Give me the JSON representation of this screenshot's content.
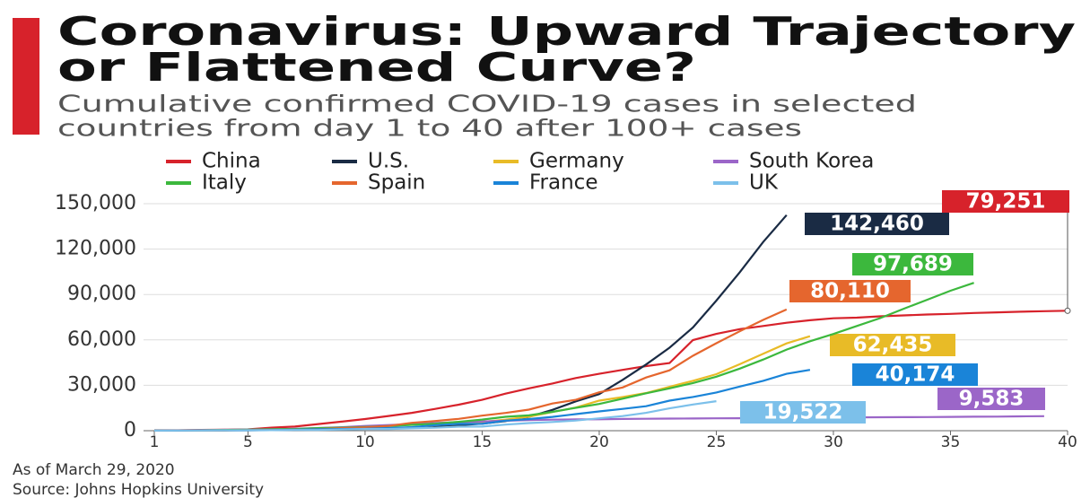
{
  "chart_data": {
    "type": "line",
    "title": [
      "Coronavirus: Upward Trajectory",
      "or Flattened Curve?"
    ],
    "subtitle": [
      "Cumulative confirmed COVID-19 cases in selected",
      "countries from day 1 to 40 after 100+ cases"
    ],
    "notes": [
      "As of March 29, 2020",
      "Source: Johns Hopkins University"
    ],
    "x": [
      1,
      2,
      3,
      4,
      5,
      6,
      7,
      8,
      9,
      10,
      11,
      12,
      13,
      14,
      15,
      16,
      17,
      18,
      19,
      20,
      21,
      22,
      23,
      24,
      25,
      26,
      27,
      28,
      29,
      30,
      31,
      32,
      33,
      34,
      35,
      36,
      37,
      38,
      39,
      40
    ],
    "xlim": [
      1,
      40
    ],
    "xticks": [
      1,
      5,
      10,
      15,
      20,
      25,
      30,
      35,
      40
    ],
    "ylim": [
      0,
      150000
    ],
    "yticks": [
      0,
      {
        "value": 30000,
        "label": "30,000"
      },
      {
        "value": 60000,
        "label": "60,000"
      },
      {
        "value": 90000,
        "label": "90,000"
      },
      {
        "value": 120000,
        "label": "120,000"
      },
      {
        "value": 150000,
        "label": "150,000"
      }
    ],
    "grid": true,
    "series": [
      {
        "name": "China",
        "color": "#d7222b",
        "values": [
          278,
          326,
          547,
          639,
          916,
          2000,
          2700,
          4400,
          6000,
          7700,
          9700,
          11800,
          14400,
          17200,
          20400,
          24500,
          28000,
          31200,
          34800,
          37600,
          40200,
          42700,
          44700,
          59900,
          64000,
          67100,
          69200,
          71300,
          73000,
          74300,
          74700,
          75600,
          76200,
          76800,
          77200,
          77800,
          78200,
          78600,
          79000,
          79251
        ],
        "value_labels": [
          null,
          null,
          null,
          null,
          null,
          null,
          null,
          null,
          null,
          null,
          null,
          null,
          null,
          null,
          null,
          null,
          null,
          null,
          null,
          null,
          null,
          null,
          null,
          null,
          null,
          null,
          null,
          null,
          null,
          null,
          null,
          null,
          null,
          null,
          null,
          null,
          null,
          null,
          null,
          "79,251"
        ]
      },
      {
        "name": "U.S.",
        "color": "#1a2b44",
        "values": [
          100,
          124,
          158,
          221,
          319,
          435,
          541,
          704,
          994,
          1301,
          1630,
          2183,
          2770,
          3613,
          4596,
          6344,
          9197,
          13779,
          19367,
          24192,
          33592,
          43781,
          54856,
          68211,
          85996,
          104686,
          124665,
          142460,
          null,
          null,
          null,
          null,
          null,
          null,
          null,
          null,
          null,
          null,
          null,
          null
        ],
        "value_labels": [
          null,
          null,
          null,
          null,
          null,
          null,
          null,
          null,
          null,
          null,
          null,
          null,
          null,
          null,
          null,
          null,
          null,
          null,
          null,
          null,
          null,
          null,
          null,
          null,
          null,
          null,
          null,
          "142,460",
          null,
          null,
          null,
          null,
          null,
          null,
          null,
          null,
          null,
          null,
          null,
          null
        ]
      },
      {
        "name": "Germany",
        "color": "#e8bb27",
        "values": [
          130,
          159,
          196,
          262,
          482,
          670,
          799,
          1040,
          1176,
          1457,
          1908,
          2078,
          3675,
          4585,
          5795,
          7272,
          9257,
          12327,
          15320,
          19848,
          22213,
          24873,
          29056,
          32986,
          37323,
          43938,
          50871,
          57695,
          62435,
          null,
          null,
          null,
          null,
          null,
          null,
          null,
          null,
          null,
          null,
          null
        ],
        "value_labels": [
          null,
          null,
          null,
          null,
          null,
          null,
          null,
          null,
          null,
          null,
          null,
          null,
          null,
          null,
          null,
          null,
          null,
          null,
          null,
          null,
          null,
          null,
          null,
          null,
          null,
          null,
          null,
          null,
          "62,435",
          null,
          null,
          null,
          null,
          null,
          null,
          null,
          null,
          null,
          null,
          null
        ]
      },
      {
        "name": "South Korea",
        "color": "#9b66c8",
        "values": [
          104,
          204,
          433,
          602,
          833,
          977,
          1261,
          1766,
          2337,
          3150,
          3736,
          4335,
          5186,
          5621,
          6088,
          6593,
          7041,
          7314,
          7478,
          7513,
          7755,
          7869,
          7979,
          8086,
          8162,
          8236,
          8320,
          8413,
          8565,
          8652,
          8799,
          8897,
          8961,
          9037,
          9137,
          9241,
          9332,
          9478,
          9583,
          null
        ],
        "value_labels": [
          null,
          null,
          null,
          null,
          null,
          null,
          null,
          null,
          null,
          null,
          null,
          null,
          null,
          null,
          null,
          null,
          null,
          null,
          null,
          null,
          null,
          null,
          null,
          null,
          null,
          null,
          null,
          null,
          null,
          null,
          null,
          null,
          null,
          null,
          null,
          null,
          null,
          null,
          "9,583",
          null
        ]
      },
      {
        "name": "Italy",
        "color": "#3cb83d",
        "values": [
          155,
          229,
          322,
          453,
          655,
          888,
          1128,
          1694,
          2036,
          2502,
          3089,
          3858,
          4636,
          5883,
          7375,
          9172,
          10149,
          12462,
          15113,
          17660,
          21157,
          24747,
          27980,
          31506,
          35713,
          41035,
          47021,
          53578,
          59138,
          63927,
          69176,
          74386,
          80589,
          86498,
          92472,
          97689,
          null,
          null,
          null,
          null
        ],
        "value_labels": [
          null,
          null,
          null,
          null,
          null,
          null,
          null,
          null,
          null,
          null,
          null,
          null,
          null,
          null,
          null,
          null,
          null,
          null,
          null,
          null,
          null,
          null,
          null,
          null,
          null,
          null,
          null,
          null,
          null,
          null,
          null,
          null,
          null,
          null,
          null,
          "97,689",
          null,
          null,
          null,
          null
        ]
      },
      {
        "name": "Spain",
        "color": "#e5662e",
        "values": [
          120,
          165,
          222,
          259,
          400,
          500,
          673,
          1073,
          1695,
          2277,
          3146,
          5232,
          6391,
          7798,
          9942,
          11748,
          13910,
          17963,
          20410,
          25374,
          28603,
          35136,
          39885,
          49515,
          57786,
          65719,
          73235,
          80110,
          null,
          null,
          null,
          null,
          null,
          null,
          null,
          null,
          null,
          null,
          null,
          null
        ],
        "value_labels": [
          null,
          null,
          null,
          null,
          null,
          null,
          null,
          null,
          null,
          null,
          null,
          null,
          null,
          null,
          null,
          null,
          null,
          null,
          null,
          null,
          null,
          null,
          null,
          null,
          null,
          null,
          null,
          "80,110",
          null,
          null,
          null,
          null,
          null,
          null,
          null,
          null,
          null,
          null,
          null,
          null
        ]
      },
      {
        "name": "France",
        "color": "#1a84d8",
        "values": [
          100,
          130,
          191,
          204,
          288,
          380,
          656,
          957,
          1134,
          1217,
          1792,
          2289,
          3672,
          4480,
          4513,
          6650,
          7699,
          9105,
          10947,
          12726,
          14431,
          16176,
          19856,
          22304,
          25233,
          29155,
          32964,
          37575,
          40174,
          null,
          null,
          null,
          null,
          null,
          null,
          null,
          null,
          null,
          null,
          null
        ],
        "value_labels": [
          null,
          null,
          null,
          null,
          null,
          null,
          null,
          null,
          null,
          null,
          null,
          null,
          null,
          null,
          null,
          null,
          null,
          null,
          null,
          null,
          null,
          null,
          null,
          null,
          null,
          null,
          null,
          null,
          "40,174",
          null,
          null,
          null,
          null,
          null,
          null,
          null,
          null,
          null,
          null,
          null
        ]
      },
      {
        "name": "UK",
        "color": "#7cc0ea",
        "values": [
          115,
          163,
          206,
          273,
          321,
          382,
          456,
          459,
          802,
          1144,
          1145,
          1551,
          1960,
          2642,
          2716,
          4014,
          5067,
          5745,
          6726,
          8164,
          9640,
          11812,
          14745,
          17312,
          19522,
          null,
          null,
          null,
          null,
          null,
          null,
          null,
          null,
          null,
          null,
          null,
          null,
          null,
          null,
          null
        ],
        "value_labels": [
          null,
          null,
          null,
          null,
          null,
          null,
          null,
          null,
          null,
          null,
          null,
          null,
          null,
          null,
          null,
          null,
          null,
          null,
          null,
          null,
          null,
          null,
          null,
          null,
          "19,522",
          null,
          null,
          null,
          null,
          null,
          null,
          null,
          null,
          null,
          null,
          null,
          null,
          null,
          null,
          null
        ]
      }
    ]
  }
}
